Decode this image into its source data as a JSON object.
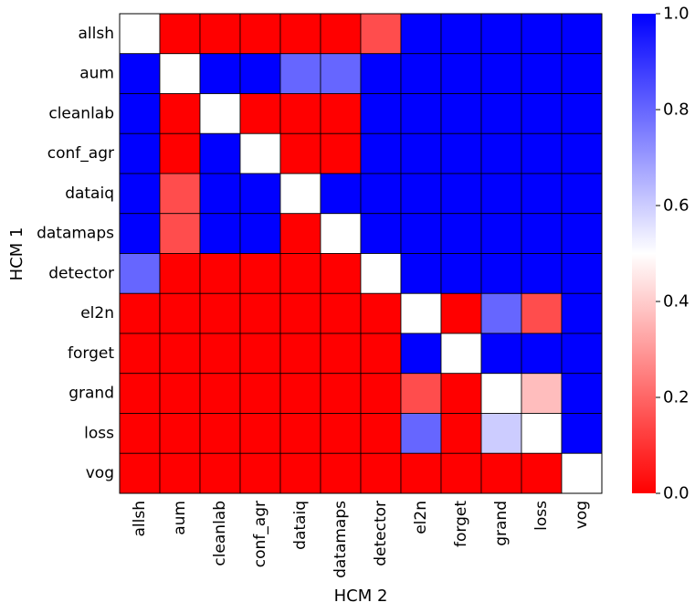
{
  "chart_data": {
    "type": "heatmap",
    "xlabel": "HCM 2",
    "ylabel": "HCM 1",
    "rows": [
      "allsh",
      "aum",
      "cleanlab",
      "conf_agr",
      "dataiq",
      "datamaps",
      "detector",
      "el2n",
      "forget",
      "grand",
      "loss",
      "vog"
    ],
    "cols": [
      "allsh",
      "aum",
      "cleanlab",
      "conf_agr",
      "dataiq",
      "datamaps",
      "detector",
      "el2n",
      "forget",
      "grand",
      "loss",
      "vog"
    ],
    "values": [
      [
        0.5,
        0.0,
        0.0,
        0.0,
        0.0,
        0.0,
        0.15,
        1.0,
        1.0,
        1.0,
        1.0,
        1.0
      ],
      [
        1.0,
        0.5,
        1.0,
        1.0,
        0.8,
        0.8,
        1.0,
        1.0,
        1.0,
        1.0,
        1.0,
        1.0
      ],
      [
        1.0,
        0.0,
        0.5,
        0.0,
        0.0,
        0.0,
        1.0,
        1.0,
        1.0,
        1.0,
        1.0,
        1.0
      ],
      [
        1.0,
        0.0,
        1.0,
        0.5,
        0.0,
        0.0,
        1.0,
        1.0,
        1.0,
        1.0,
        1.0,
        1.0
      ],
      [
        1.0,
        0.15,
        1.0,
        1.0,
        0.5,
        1.0,
        1.0,
        1.0,
        1.0,
        1.0,
        1.0,
        1.0
      ],
      [
        1.0,
        0.15,
        1.0,
        1.0,
        0.0,
        0.5,
        1.0,
        1.0,
        1.0,
        1.0,
        1.0,
        1.0
      ],
      [
        0.8,
        0.0,
        0.0,
        0.0,
        0.0,
        0.0,
        0.5,
        1.0,
        1.0,
        1.0,
        1.0,
        1.0
      ],
      [
        0.0,
        0.0,
        0.0,
        0.0,
        0.0,
        0.0,
        0.0,
        0.5,
        0.0,
        0.8,
        0.15,
        1.0
      ],
      [
        0.0,
        0.0,
        0.0,
        0.0,
        0.0,
        0.0,
        0.0,
        1.0,
        0.5,
        1.0,
        1.0,
        1.0
      ],
      [
        0.0,
        0.0,
        0.0,
        0.0,
        0.0,
        0.0,
        0.0,
        0.15,
        0.0,
        0.5,
        0.37,
        1.0
      ],
      [
        0.0,
        0.0,
        0.0,
        0.0,
        0.0,
        0.0,
        0.0,
        0.8,
        0.0,
        0.6,
        0.5,
        1.0
      ],
      [
        0.0,
        0.0,
        0.0,
        0.0,
        0.0,
        0.0,
        0.0,
        0.0,
        0.0,
        0.0,
        0.0,
        0.5
      ]
    ],
    "colormap": {
      "low": "#ff0000",
      "mid": "#ffffff",
      "high": "#0000ff"
    },
    "colorbar": {
      "range": [
        0.0,
        1.0
      ],
      "ticks": [
        0.0,
        0.2,
        0.4,
        0.6,
        0.8,
        1.0
      ],
      "tick_labels": [
        "0.0",
        "0.2",
        "0.4",
        "0.6",
        "0.8",
        "1.0"
      ]
    }
  }
}
